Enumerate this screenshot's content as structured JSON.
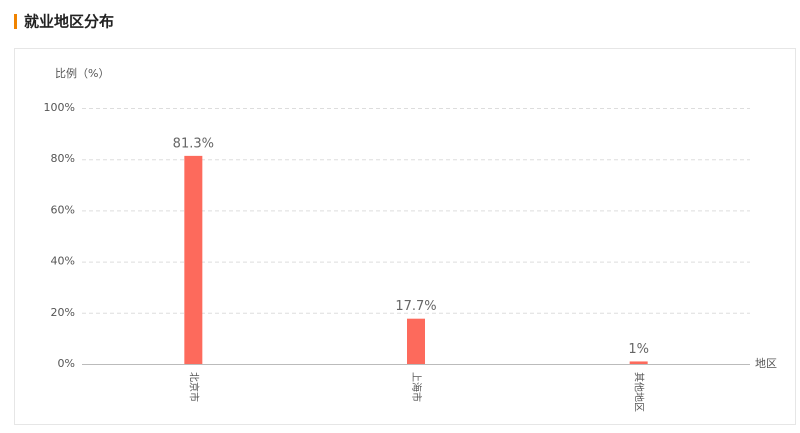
{
  "chart_data": {
    "type": "bar",
    "title": "就业地区分布",
    "y_label": "比例（%）",
    "x_label": "地区",
    "categories": [
      "北京市",
      "上海市",
      "其他地区"
    ],
    "values": [
      81.3,
      17.7,
      1
    ],
    "value_labels": [
      "81.3%",
      "17.7%",
      "1%"
    ],
    "color": "#fd6a5c",
    "ylim": [
      0,
      100
    ],
    "yticks": [
      {
        "value": 0,
        "label": "0%"
      },
      {
        "value": 20,
        "label": "20%"
      },
      {
        "value": 40,
        "label": "40%"
      },
      {
        "value": 60,
        "label": "60%"
      },
      {
        "value": 80,
        "label": "80%"
      },
      {
        "value": 100,
        "label": "100%"
      }
    ],
    "grid": true
  }
}
